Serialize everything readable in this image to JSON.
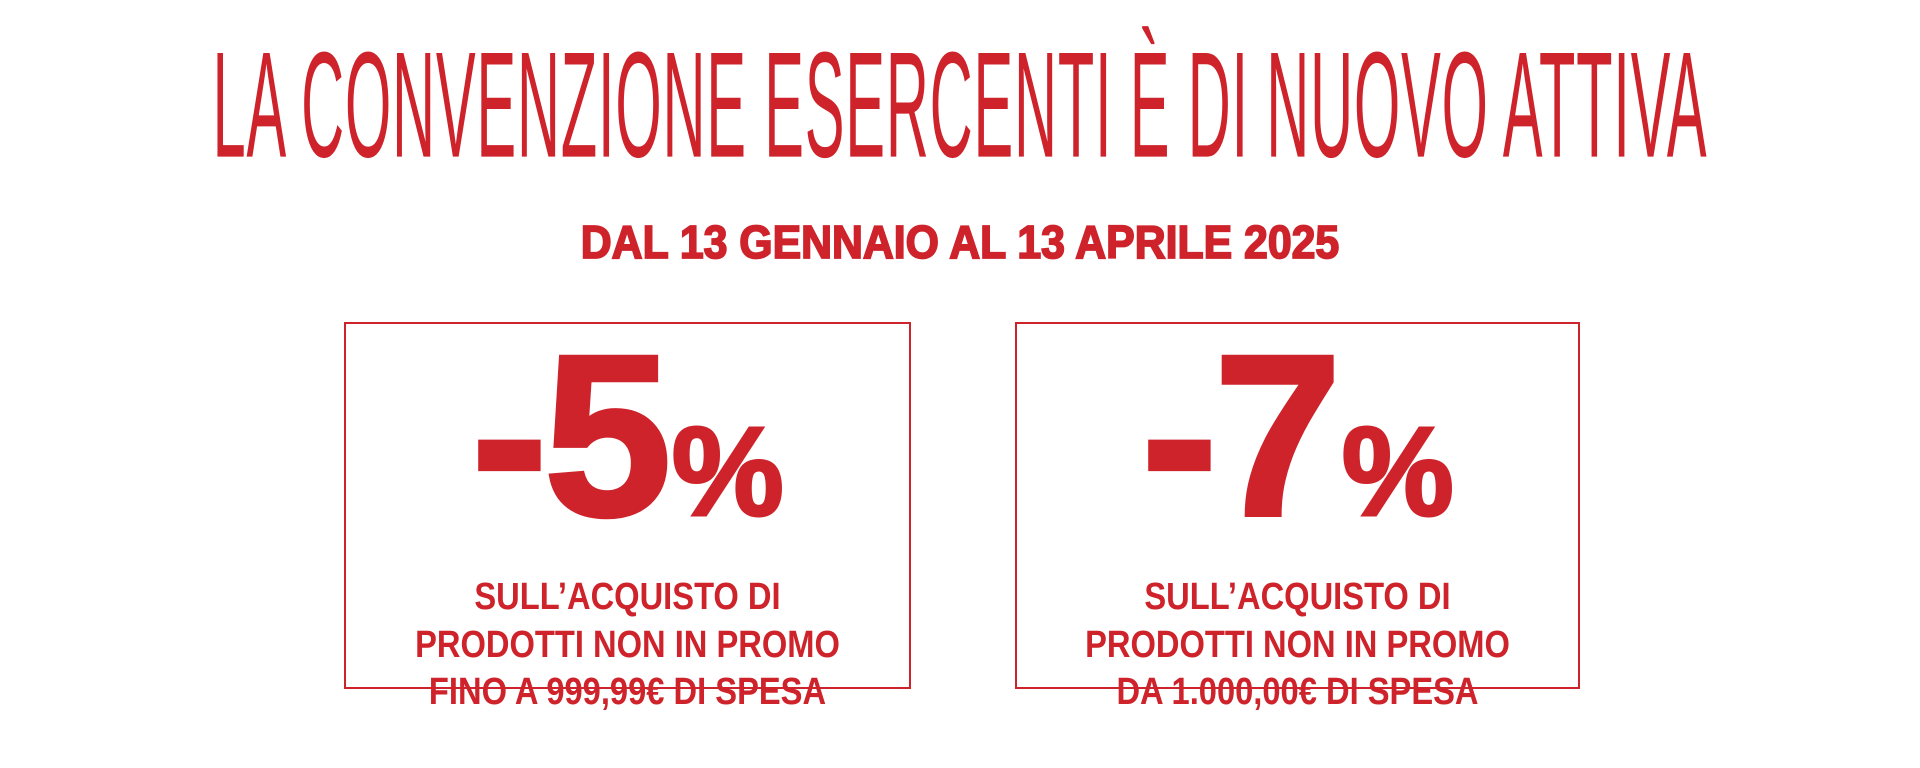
{
  "page": {
    "background_color": "#ffffff",
    "accent_red": "#ce232b"
  },
  "banner": {
    "title": "LA CONVENZIONE ESERCENTI È DI NUOVO ATTIVA",
    "subtitle": "DAL 13 GENNAIO AL 13 APRILE 2025",
    "offers": [
      {
        "discount_value": "-5",
        "percent_sign": "%",
        "lines": [
          "SULL’ACQUISTO DI",
          "PRODOTTI NON IN PROMO",
          "FINO A 999,99€ DI SPESA"
        ]
      },
      {
        "discount_value": "-7",
        "percent_sign": "%",
        "lines": [
          "SULL’ACQUISTO DI",
          "PRODOTTI NON IN PROMO",
          "DA 1.000,00€ DI SPESA"
        ]
      }
    ]
  }
}
